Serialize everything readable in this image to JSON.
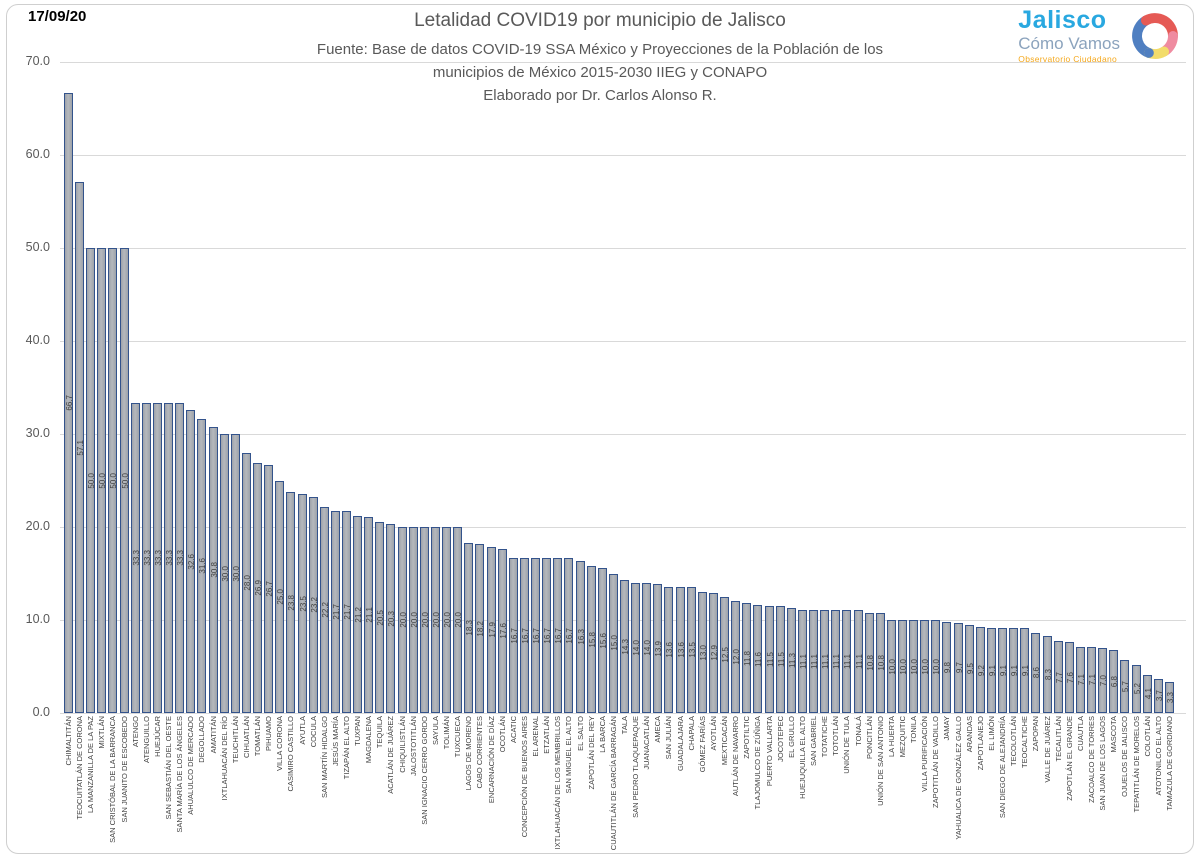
{
  "date": "17/09/20",
  "header": {
    "title": "Letalidad COVID19 por municipio de Jalisco",
    "subtitle_line1": "Fuente: Base de datos COVID-19 SSA México y Proyecciones de la Población de los",
    "subtitle_line2": "municipios de México 2015-2030 IIEG y CONAPO",
    "subtitle_line3": "Elaborado por Dr. Carlos Alonso R."
  },
  "logo": {
    "line1": "Jalisco",
    "line2": "Cómo Vamos",
    "line3": "Observatorio Ciudadano",
    "colors": {
      "blue": "#4f7fc1",
      "red": "#e55a55",
      "pink": "#ef8ba0",
      "yellow": "#f2dc6b"
    }
  },
  "chart_data": {
    "type": "bar",
    "title": "Letalidad COVID19 por municipio de Jalisco",
    "xlabel": "",
    "ylabel": "",
    "ylim": [
      0,
      70
    ],
    "yticks": [
      {
        "label": "70.0",
        "value": 70
      },
      {
        "label": "60.0",
        "value": 60
      },
      {
        "label": "50.0",
        "value": 50
      },
      {
        "label": "40.0",
        "value": 40
      },
      {
        "label": "30.0",
        "value": 30
      },
      {
        "label": "20.0",
        "value": 20
      },
      {
        "label": "10.0",
        "value": 10
      },
      {
        "label": "0.0",
        "value": 0
      }
    ],
    "grid": true,
    "legend": false,
    "bar_fill": "#a7aaaf",
    "bar_border": "#33538c",
    "value_label_color": "#404040",
    "categories": [
      "CHIMALTITÁN",
      "TEOCUITATLÁN DE CORONA",
      "LA MANZANILLA DE LA PAZ",
      "MIXTLÁN",
      "SAN CRISTÓBAL DE LA BARRANCA",
      "SAN JUANITO DE ESCOBEDO",
      "ATENGO",
      "ATENGUILLO",
      "HUEJÚCAR",
      "SAN SEBASTIÁN DEL OESTE",
      "SANTA MARÍA DE LOS ÁNGELES",
      "AHUALULCO DE MERCADO",
      "DEGOLLADO",
      "AMATITÁN",
      "IXTLAHUACÁN DEL RÍO",
      "TEUCHITLÁN",
      "CIHUATLÁN",
      "TOMATLÁN",
      "PIHUAMO",
      "VILLA CORONA",
      "CASIMIRO CASTILLO",
      "AYUTLA",
      "COCULA",
      "SAN MARTÍN HIDALGO",
      "JESÚS MARÍA",
      "TIZAPÁN EL ALTO",
      "TUXPAN",
      "MAGDALENA",
      "TEQUILA",
      "ACATLÁN DE JUÁREZ",
      "CHIQUILISTLÁN",
      "JALOSTOTITLÁN",
      "SAN IGNACIO CERRO GORDO",
      "SAYULA",
      "TOLIMÁN",
      "TUXCUECA",
      "LAGOS DE MORENO",
      "CABO CORRIENTES",
      "ENCARNACIÓN DE DÍAZ",
      "OCOTLÁN",
      "ACATIC",
      "CONCEPCIÓN DE BUENOS AIRES",
      "EL ARENAL",
      "ETZATLÁN",
      "IXTLAHUACÁN DE LOS MEMBRILLOS",
      "SAN MIGUEL EL ALTO",
      "EL SALTO",
      "ZAPOTLÁN DEL REY",
      "LA BARCA",
      "CUAUTITLÁN DE GARCÍA BARRAGÁN",
      "TALA",
      "SAN PEDRO TLAQUEPAQUE",
      "JUANACATLÁN",
      "AMECA",
      "SAN JULIÁN",
      "GUADALAJARA",
      "CHAPALA",
      "GÓMEZ FARÍAS",
      "AYOTLÁN",
      "MEXTICACÁN",
      "AUTLÁN DE NAVARRO",
      "ZAPOTILTIC",
      "TLAJOMULCO DE ZÚÑIGA",
      "PUERTO VALLARTA",
      "JOCOTEPEC",
      "EL GRULLO",
      "HUEJUQUILLA EL ALTO",
      "SAN GABRIEL",
      "TOTATICHE",
      "TOTOTLÁN",
      "UNIÓN DE TULA",
      "TONALÁ",
      "PONCITLÁN",
      "UNIÓN DE SAN ANTONIO",
      "LA HUERTA",
      "MEZQUITIC",
      "TONILA",
      "VILLA PURIFICACIÓN",
      "ZAPOTITLÁN DE VADILLO",
      "JAMAY",
      "YAHUALICA DE GONZÁLEZ GALLO",
      "ARANDAS",
      "ZAPOTLANEJO",
      "EL LIMÓN",
      "SAN DIEGO DE ALEJANDRÍA",
      "TECOLOTLÁN",
      "TEOCALTICHE",
      "ZAPOPAN",
      "VALLE DE JUÁREZ",
      "TECALITLÁN",
      "ZAPOTLÁN EL GRANDE",
      "CUAUTLA",
      "ZACOALCO DE TORRES",
      "SAN JUAN DE LOS LAGOS",
      "MASCOTA",
      "OJUELOS DE JALISCO",
      "TEPATITLÁN DE MORELOS",
      "COLOTLÁN",
      "ATOTONILCO EL ALTO",
      "TAMAZULA DE GORDIANO"
    ],
    "values": [
      66.7,
      57.1,
      50.0,
      50.0,
      50.0,
      50.0,
      33.3,
      33.3,
      33.3,
      33.3,
      33.3,
      32.6,
      31.6,
      30.8,
      30.0,
      30.0,
      28.0,
      26.9,
      26.7,
      25.0,
      23.8,
      23.5,
      23.2,
      22.2,
      21.7,
      21.7,
      21.2,
      21.1,
      20.5,
      20.3,
      20.0,
      20.0,
      20.0,
      20.0,
      20.0,
      20.0,
      18.3,
      18.2,
      17.9,
      17.6,
      16.7,
      16.7,
      16.7,
      16.7,
      16.7,
      16.7,
      16.3,
      15.8,
      15.6,
      15.0,
      14.3,
      14.0,
      14.0,
      13.9,
      13.6,
      13.6,
      13.5,
      13.0,
      12.9,
      12.5,
      12.0,
      11.8,
      11.6,
      11.5,
      11.5,
      11.3,
      11.1,
      11.1,
      11.1,
      11.1,
      11.1,
      11.1,
      10.8,
      10.8,
      10.0,
      10.0,
      10.0,
      10.0,
      10.0,
      9.8,
      9.7,
      9.5,
      9.2,
      9.1,
      9.1,
      9.1,
      9.1,
      8.6,
      8.3,
      7.7,
      7.6,
      7.1,
      7.1,
      7.0,
      6.8,
      5.7,
      5.2,
      4.1,
      3.7,
      3.3
    ]
  }
}
